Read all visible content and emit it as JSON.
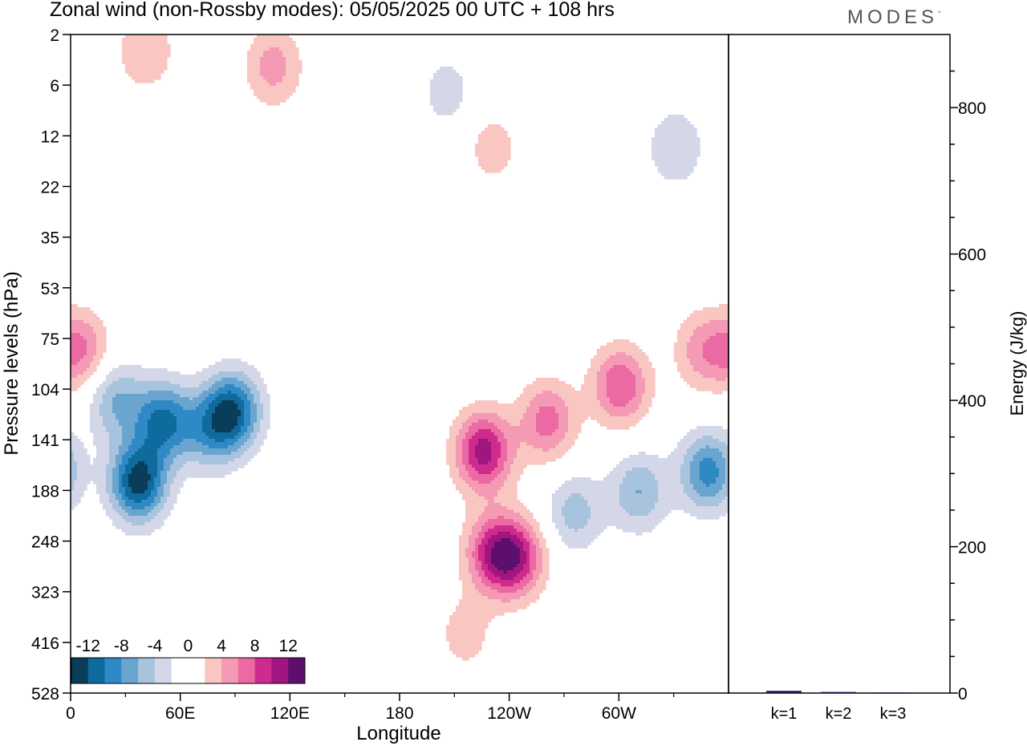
{
  "title": "Zonal wind (non-Rossby modes):  05/05/2025  00 UTC  + 108 hrs",
  "logo": "MODES",
  "logo_mark": "°",
  "colors": {
    "neg": [
      "#0a3d5a",
      "#0f6b9e",
      "#2f89c4",
      "#6aa5cf",
      "#a8c3de",
      "#d3d7e8"
    ],
    "pos": [
      "#f9c6c2",
      "#f59ab4",
      "#ec6aa3",
      "#cf2a8e",
      "#a0157f",
      "#5d0f6e"
    ]
  },
  "chart_data": [
    {
      "type": "heatmap",
      "title": "Zonal wind (non-Rossby modes):  05/05/2025  00 UTC  + 108 hrs",
      "xlabel": "Longitude",
      "ylabel": "Pressure levels (hPa)",
      "x_ticks": [
        "0",
        "60E",
        "120E",
        "180",
        "120W",
        "60W"
      ],
      "y_ticks": [
        "2",
        "6",
        "12",
        "22",
        "35",
        "53",
        "75",
        "104",
        "141",
        "188",
        "248",
        "323",
        "416",
        "528"
      ],
      "colorbar": {
        "labels": [
          "-12",
          "-8",
          "-4",
          "0",
          "4",
          "8",
          "12"
        ],
        "levels": [
          -14,
          -12,
          -10,
          -8,
          -6,
          -4,
          -2,
          2,
          4,
          6,
          8,
          10,
          12,
          14
        ]
      },
      "features": [
        {
          "lon": 36,
          "lev": 8.8,
          "value": -13
        },
        {
          "lon": 50,
          "lev": 7.6,
          "value": -10
        },
        {
          "lon": 88,
          "lev": 7.4,
          "value": -11
        },
        {
          "lon": 75,
          "lev": 7.8,
          "value": -6
        },
        {
          "lon": 24,
          "lev": 7.2,
          "value": -6
        },
        {
          "lon": 310,
          "lev": 9.0,
          "value": -6
        },
        {
          "lon": 348,
          "lev": 8.6,
          "value": -9
        },
        {
          "lon": 275,
          "lev": 9.4,
          "value": -5
        },
        {
          "lon": 225,
          "lev": 8.2,
          "value": 11
        },
        {
          "lon": 230,
          "lev": 10.2,
          "value": 8
        },
        {
          "lon": 243,
          "lev": 10.3,
          "value": 9
        },
        {
          "lon": 260,
          "lev": 7.6,
          "value": 7
        },
        {
          "lon": 300,
          "lev": 6.9,
          "value": 8
        },
        {
          "lon": 5,
          "lev": 6.2,
          "value": 6
        },
        {
          "lon": 345,
          "lev": 6.2,
          "value": 5
        },
        {
          "lon": 215,
          "lev": 11.8,
          "value": 3
        },
        {
          "lon": 40,
          "lev": 0.3,
          "value": 4
        },
        {
          "lon": 110,
          "lev": 0.6,
          "value": 5
        },
        {
          "lon": 230,
          "lev": 2.2,
          "value": 3
        },
        {
          "lon": 205,
          "lev": 1.1,
          "value": -3
        },
        {
          "lon": 330,
          "lev": 2.2,
          "value": -4
        }
      ]
    },
    {
      "type": "bar",
      "categories": [
        "k=1",
        "k=2",
        "k=3"
      ],
      "values": [
        3,
        1.5,
        0.8
      ],
      "ylabel": "Energy (J/kg)",
      "ylim": [
        0,
        900
      ],
      "y_ticks": [
        0,
        200,
        400,
        600,
        800
      ]
    }
  ]
}
